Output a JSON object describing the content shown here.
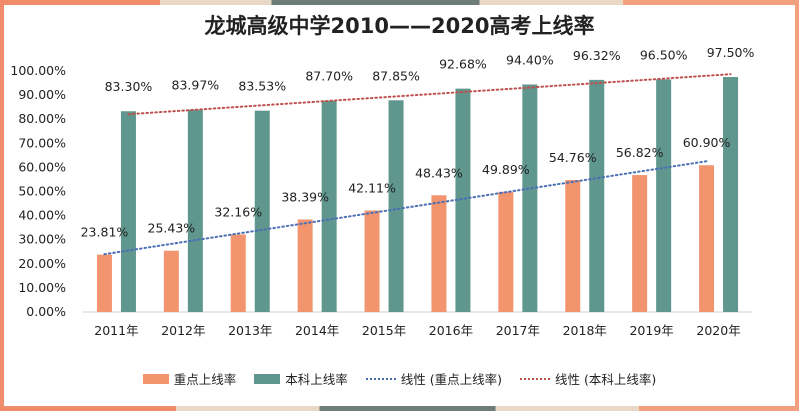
{
  "chart_data": {
    "type": "bar",
    "title": "龙城高级中学2010——2020高考上线率",
    "categories": [
      "2011年",
      "2012年",
      "2013年",
      "2014年",
      "2015年",
      "2016年",
      "2017年",
      "2018年",
      "2019年",
      "2020年"
    ],
    "series": [
      {
        "name": "重点上线率",
        "values": [
          23.81,
          25.43,
          32.16,
          38.39,
          42.11,
          48.43,
          49.89,
          54.76,
          56.82,
          60.9
        ],
        "color": "#f2956f"
      },
      {
        "name": "本科上线率",
        "values": [
          83.3,
          83.97,
          83.53,
          87.7,
          87.85,
          92.68,
          94.4,
          96.32,
          96.5,
          97.5
        ],
        "color": "#5f968d"
      }
    ],
    "data_labels": {
      "series_0": [
        "23.81%",
        "25.43%",
        "32.16%",
        "38.39%",
        "42.11%",
        "48.43%",
        "49.89%",
        "54.76%",
        "56.82%",
        "60.90%"
      ],
      "series_1": [
        "83.30%",
        "83.97%",
        "83.53%",
        "87.70%",
        "87.85%",
        "92.68%",
        "94.40%",
        "96.32%",
        "96.50%",
        "97.50%"
      ]
    },
    "trendlines": [
      {
        "name": "线性 (重点上线率)",
        "series": 0,
        "kind": "linear",
        "style": "dotted",
        "color": "#4a6fb5"
      },
      {
        "name": "线性 (本科上线率)",
        "series": 1,
        "kind": "linear",
        "style": "dotted",
        "color": "#c0504d"
      }
    ],
    "y_tick_labels": [
      "0.00%",
      "10.00%",
      "20.00%",
      "30.00%",
      "40.00%",
      "50.00%",
      "60.00%",
      "70.00%",
      "80.00%",
      "90.00%",
      "100.00%"
    ],
    "ylim": [
      0,
      100
    ],
    "grid": false,
    "legend_position": "bottom"
  },
  "legend": {
    "item_0": "重点上线率",
    "item_1": "本科上线率",
    "item_2": "线性 (重点上线率)",
    "item_3": "线性 (本科上线率)"
  }
}
